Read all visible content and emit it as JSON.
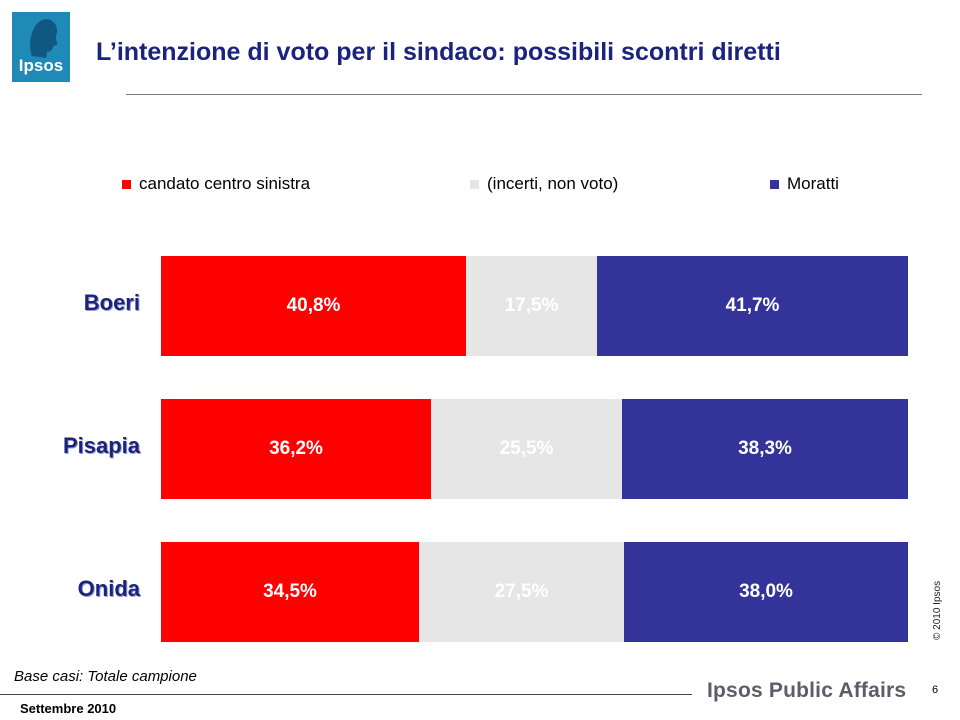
{
  "header": {
    "logo_text": "Ipsos",
    "title": "L’intenzione di voto per il sindaco: possibili scontri diretti"
  },
  "legend": [
    {
      "label": "candato centro sinistra",
      "color": "#ff0000"
    },
    {
      "label": "(incerti, non voto)",
      "color": "#e6e6e6"
    },
    {
      "label": "Moratti",
      "color": "#333399"
    }
  ],
  "chart_data": {
    "type": "bar",
    "stacked": true,
    "orientation": "horizontal",
    "categories": [
      "Boeri",
      "Pisapia",
      "Onida"
    ],
    "series": [
      {
        "name": "candato centro sinistra",
        "color": "#ff0000",
        "values": [
          40.8,
          36.2,
          34.5
        ],
        "labels": [
          "40,8%",
          "36,2%",
          "34,5%"
        ]
      },
      {
        "name": "(incerti, non voto)",
        "color": "#e6e6e6",
        "values": [
          17.5,
          25.5,
          27.5
        ],
        "labels": [
          "17,5%",
          "25,5%",
          "27,5%"
        ]
      },
      {
        "name": "Moratti",
        "color": "#333399",
        "values": [
          41.7,
          38.3,
          38.0
        ],
        "labels": [
          "41,7%",
          "38,3%",
          "38,0%"
        ]
      }
    ],
    "xlim": [
      0,
      100
    ],
    "legend_position": "top"
  },
  "footer": {
    "base_note": "Base casi: Totale campione",
    "date": "Settembre 2010",
    "brand": "Ipsos Public Affairs",
    "page_number": "6",
    "copyright": "© 2010 Ipsos"
  }
}
